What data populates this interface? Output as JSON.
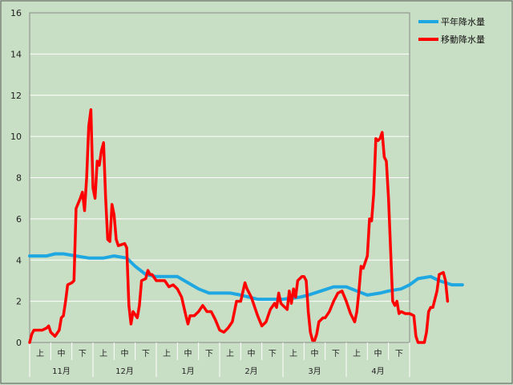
{
  "chart_data": {
    "type": "line",
    "title": "",
    "xlabel": "",
    "ylabel": "",
    "ylim": [
      0,
      16
    ],
    "yticks": [
      "0",
      "2",
      "4",
      "6",
      "8",
      "10",
      "12",
      "14",
      "16"
    ],
    "grid": "horizontal",
    "legend_position": "top-right",
    "background_color": "#c9dfc5",
    "plot_color": "#c9dfc5",
    "gridline_color": "#ffffff",
    "months": [
      "11月",
      "12月",
      "1月",
      "2月",
      "3月",
      "4月"
    ],
    "periods": [
      "上",
      "中",
      "下"
    ],
    "n_points": 180,
    "series": [
      {
        "name": "平年降水量",
        "color": "#1ea7e1",
        "keypoints": [
          [
            0,
            4.2
          ],
          [
            8,
            4.2
          ],
          [
            12,
            4.3
          ],
          [
            16,
            4.3
          ],
          [
            22,
            4.2
          ],
          [
            28,
            4.1
          ],
          [
            35,
            4.1
          ],
          [
            40,
            4.2
          ],
          [
            46,
            4.1
          ],
          [
            50,
            3.7
          ],
          [
            55,
            3.3
          ],
          [
            60,
            3.2
          ],
          [
            70,
            3.2
          ],
          [
            75,
            2.9
          ],
          [
            80,
            2.6
          ],
          [
            85,
            2.4
          ],
          [
            95,
            2.4
          ],
          [
            100,
            2.3
          ],
          [
            108,
            2.1
          ],
          [
            120,
            2.1
          ],
          [
            128,
            2.2
          ],
          [
            132,
            2.3
          ],
          [
            138,
            2.5
          ],
          [
            144,
            2.7
          ],
          [
            150,
            2.7
          ],
          [
            155,
            2.5
          ],
          [
            160,
            2.3
          ],
          [
            166,
            2.4
          ],
          [
            170,
            2.5
          ],
          [
            176,
            2.6
          ],
          [
            180,
            2.8
          ],
          [
            184,
            3.1
          ],
          [
            190,
            3.2
          ],
          [
            194,
            3.0
          ],
          [
            200,
            2.8
          ],
          [
            205,
            2.8
          ]
        ]
      },
      {
        "name": "移動降水量",
        "color": "#ff0000",
        "keypoints": [
          [
            0,
            0.0
          ],
          [
            1,
            0.4
          ],
          [
            2,
            0.6
          ],
          [
            6,
            0.6
          ],
          [
            8,
            0.7
          ],
          [
            9,
            0.8
          ],
          [
            10,
            0.5
          ],
          [
            12,
            0.3
          ],
          [
            14,
            0.6
          ],
          [
            15,
            1.2
          ],
          [
            16,
            1.3
          ],
          [
            17,
            2.0
          ],
          [
            18,
            2.8
          ],
          [
            20,
            2.9
          ],
          [
            21,
            3.0
          ],
          [
            22,
            6.5
          ],
          [
            24,
            7.0
          ],
          [
            25,
            7.3
          ],
          [
            26,
            6.4
          ],
          [
            27,
            8.0
          ],
          [
            28,
            10.5
          ],
          [
            29,
            11.3
          ],
          [
            30,
            7.5
          ],
          [
            31,
            7.0
          ],
          [
            32,
            8.8
          ],
          [
            33,
            8.6
          ],
          [
            34,
            9.3
          ],
          [
            35,
            9.7
          ],
          [
            36,
            7.0
          ],
          [
            37,
            5.0
          ],
          [
            38,
            4.9
          ],
          [
            39,
            6.7
          ],
          [
            40,
            6.2
          ],
          [
            41,
            5.0
          ],
          [
            42,
            4.7
          ],
          [
            45,
            4.8
          ],
          [
            46,
            4.6
          ],
          [
            47,
            1.8
          ],
          [
            48,
            0.9
          ],
          [
            49,
            1.5
          ],
          [
            51,
            1.2
          ],
          [
            52,
            1.8
          ],
          [
            53,
            3.0
          ],
          [
            55,
            3.1
          ],
          [
            56,
            3.5
          ],
          [
            57,
            3.3
          ],
          [
            58,
            3.3
          ],
          [
            60,
            3.0
          ],
          [
            62,
            3.0
          ],
          [
            64,
            3.0
          ],
          [
            66,
            2.7
          ],
          [
            68,
            2.8
          ],
          [
            70,
            2.6
          ],
          [
            72,
            2.2
          ],
          [
            74,
            1.3
          ],
          [
            75,
            0.9
          ],
          [
            76,
            1.3
          ],
          [
            78,
            1.3
          ],
          [
            80,
            1.5
          ],
          [
            82,
            1.8
          ],
          [
            84,
            1.5
          ],
          [
            86,
            1.5
          ],
          [
            88,
            1.1
          ],
          [
            90,
            0.6
          ],
          [
            92,
            0.5
          ],
          [
            94,
            0.7
          ],
          [
            96,
            1.0
          ],
          [
            98,
            2.0
          ],
          [
            100,
            2.0
          ],
          [
            102,
            2.9
          ],
          [
            103,
            2.6
          ],
          [
            105,
            2.2
          ],
          [
            107,
            1.6
          ],
          [
            108,
            1.3
          ],
          [
            110,
            0.8
          ],
          [
            112,
            1.0
          ],
          [
            114,
            1.6
          ],
          [
            116,
            1.9
          ],
          [
            117,
            1.7
          ],
          [
            118,
            2.4
          ],
          [
            119,
            1.9
          ],
          [
            120,
            1.8
          ],
          [
            122,
            1.6
          ],
          [
            123,
            2.5
          ],
          [
            124,
            1.9
          ],
          [
            125,
            2.6
          ],
          [
            126,
            2.2
          ],
          [
            127,
            3.0
          ],
          [
            129,
            3.2
          ],
          [
            130,
            3.2
          ],
          [
            131,
            3.0
          ],
          [
            132,
            1.5
          ],
          [
            133,
            0.5
          ],
          [
            134,
            0.1
          ],
          [
            135,
            0.1
          ],
          [
            136,
            0.4
          ],
          [
            137,
            1.0
          ],
          [
            139,
            1.2
          ],
          [
            140,
            1.2
          ],
          [
            142,
            1.5
          ],
          [
            144,
            2.0
          ],
          [
            146,
            2.4
          ],
          [
            148,
            2.5
          ],
          [
            150,
            2.0
          ],
          [
            152,
            1.4
          ],
          [
            154,
            1.0
          ],
          [
            155,
            1.5
          ],
          [
            156,
            2.5
          ],
          [
            157,
            3.7
          ],
          [
            158,
            3.6
          ],
          [
            160,
            4.2
          ],
          [
            161,
            6.0
          ],
          [
            162,
            5.9
          ],
          [
            163,
            7.2
          ],
          [
            164,
            9.9
          ],
          [
            165,
            9.8
          ],
          [
            166,
            9.9
          ],
          [
            167,
            10.2
          ],
          [
            168,
            9.0
          ],
          [
            169,
            8.8
          ],
          [
            170,
            7.0
          ],
          [
            171,
            4.5
          ],
          [
            172,
            2.0
          ],
          [
            173,
            1.8
          ],
          [
            174,
            2.0
          ],
          [
            175,
            1.4
          ],
          [
            176,
            1.5
          ],
          [
            178,
            1.4
          ],
          [
            180,
            1.4
          ],
          [
            182,
            1.3
          ],
          [
            183,
            0.3
          ],
          [
            184,
            0.0
          ],
          [
            186,
            0.0
          ],
          [
            187,
            0.0
          ],
          [
            188,
            0.5
          ],
          [
            189,
            1.5
          ],
          [
            190,
            1.7
          ],
          [
            191,
            1.7
          ],
          [
            193,
            2.5
          ],
          [
            194,
            3.3
          ],
          [
            196,
            3.4
          ],
          [
            197,
            3.0
          ],
          [
            198,
            2.0
          ]
        ]
      }
    ]
  }
}
